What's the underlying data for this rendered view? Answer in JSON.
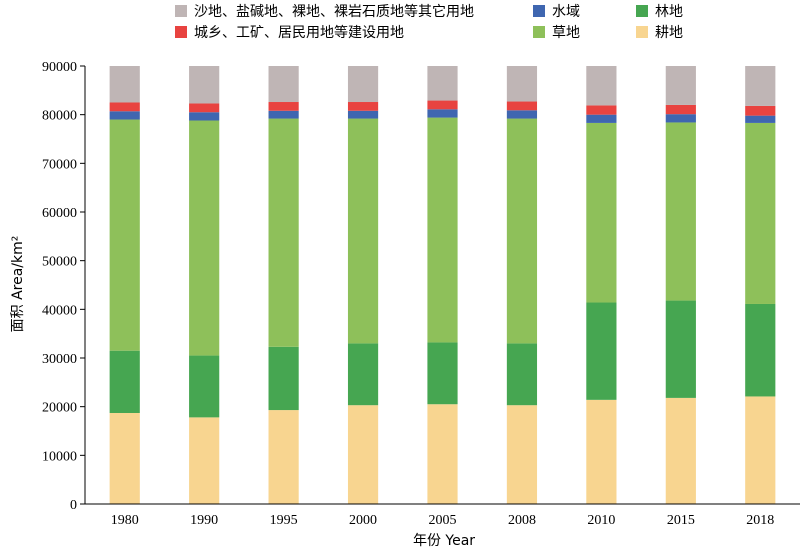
{
  "chart_data": {
    "type": "bar",
    "stacked": true,
    "title": "",
    "xlabel": "年份 Year",
    "ylabel": "面积 Area/km²",
    "ylim": [
      0,
      90000
    ],
    "yticks": [
      0,
      10000,
      20000,
      30000,
      40000,
      50000,
      60000,
      70000,
      80000,
      90000
    ],
    "grid": false,
    "legend_position": "top",
    "categories": [
      "1980",
      "1990",
      "1995",
      "2000",
      "2005",
      "2008",
      "2010",
      "2015",
      "2018"
    ],
    "series": [
      {
        "name": "耕地",
        "color": "#f8d590",
        "values": [
          18700,
          17800,
          19300,
          20300,
          20500,
          20300,
          21400,
          21800,
          22100
        ]
      },
      {
        "name": "林地",
        "color": "#46a651",
        "values": [
          12800,
          12700,
          13000,
          12700,
          12700,
          12700,
          20000,
          20000,
          19000
        ]
      },
      {
        "name": "草地",
        "color": "#8ec05a",
        "values": [
          47500,
          48300,
          46900,
          46200,
          46200,
          46200,
          36900,
          36600,
          37200
        ]
      },
      {
        "name": "水域",
        "color": "#3f66b0",
        "values": [
          1700,
          1700,
          1600,
          1600,
          1700,
          1700,
          1700,
          1700,
          1500
        ]
      },
      {
        "name": "城乡、工矿、居民用地等建设用地",
        "color": "#e84340",
        "values": [
          1800,
          1800,
          1800,
          1800,
          1800,
          1800,
          1900,
          1900,
          2000
        ]
      },
      {
        "name": "沙地、盐碱地、裸地、裸岩石质地等其它用地",
        "color": "#bfb5b5",
        "values": [
          7500,
          7700,
          7400,
          7400,
          7100,
          7300,
          8100,
          8000,
          8200
        ]
      }
    ],
    "legend": [
      {
        "label": "沙地、盐碱地、裸地、裸岩石质地等其它用地",
        "color": "#bfb5b5",
        "row": 0,
        "col": 0
      },
      {
        "label": "水域",
        "color": "#3f66b0",
        "row": 0,
        "col": 1
      },
      {
        "label": "林地",
        "color": "#46a651",
        "row": 0,
        "col": 2
      },
      {
        "label": "城乡、工矿、居民用地等建设用地",
        "color": "#e84340",
        "row": 1,
        "col": 0
      },
      {
        "label": "草地",
        "color": "#8ec05a",
        "row": 1,
        "col": 1
      },
      {
        "label": "耕地",
        "color": "#f8d590",
        "row": 1,
        "col": 2
      }
    ]
  }
}
